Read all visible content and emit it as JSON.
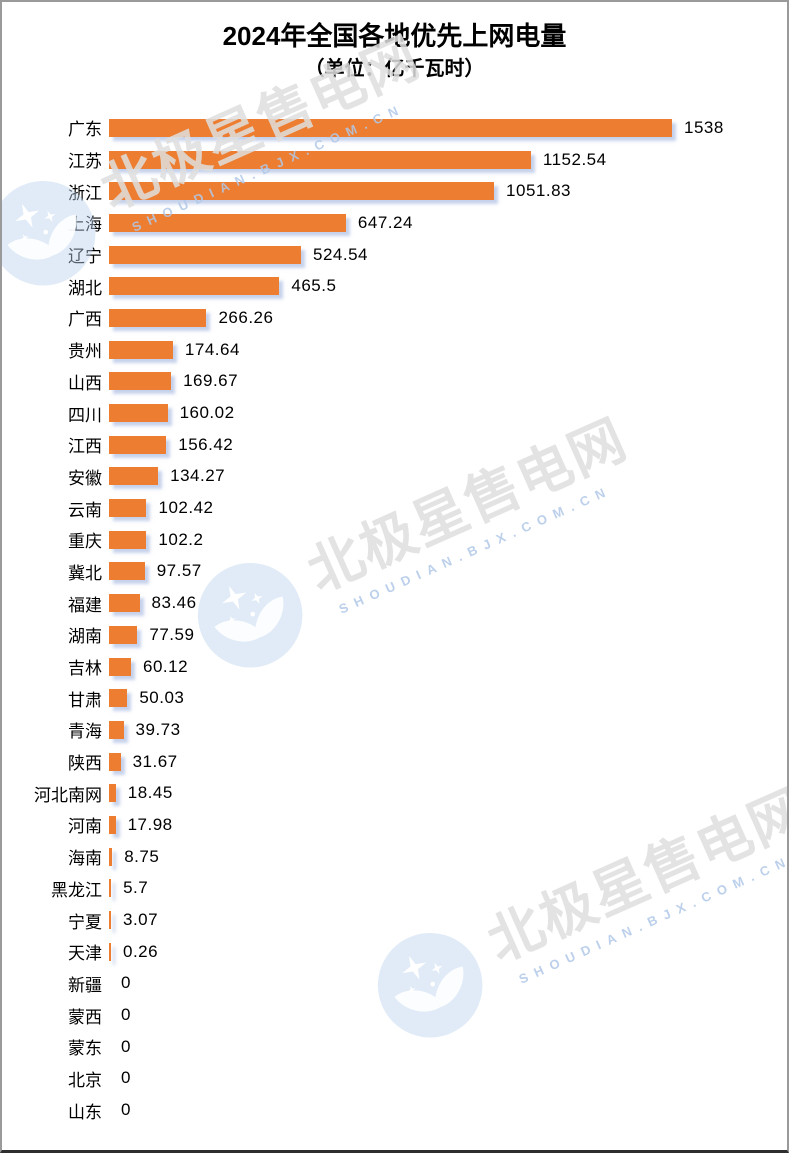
{
  "frame": {
    "title": "2024年全国各地优先上网电量",
    "subtitle": "（单位：亿千瓦时）"
  },
  "watermark": {
    "brand": "北极星售电网",
    "domain": "SHOUDIAN.BJX.COM.CN"
  },
  "colors": {
    "bar": "#ED7D31",
    "bar_shadow": "rgba(141,166,215,0.5)",
    "watermark_brand": "rgba(222,222,222,0.85)",
    "watermark_domain": "rgba(176,200,231,0.85)",
    "frame_border": "#9a9a9a"
  },
  "chart_data": {
    "type": "bar",
    "orientation": "horizontal",
    "title": "2024年全国各地优先上网电量",
    "subtitle": "（单位：亿千瓦时）",
    "unit": "亿千瓦时",
    "xlim": [
      0,
      1600
    ],
    "grid": false,
    "legend": false,
    "bar_color": "#ED7D31",
    "categories": [
      "广东",
      "江苏",
      "浙江",
      "上海",
      "辽宁",
      "湖北",
      "广西",
      "贵州",
      "山西",
      "四川",
      "江西",
      "安徽",
      "云南",
      "重庆",
      "冀北",
      "福建",
      "湖南",
      "吉林",
      "甘肃",
      "青海",
      "陕西",
      "河北南网",
      "河南",
      "海南",
      "黑龙江",
      "宁夏",
      "天津",
      "新疆",
      "蒙西",
      "蒙东",
      "北京",
      "山东"
    ],
    "values": [
      1538,
      1152.54,
      1051.83,
      647.24,
      524.54,
      465.5,
      266.26,
      174.64,
      169.67,
      160.02,
      156.42,
      134.27,
      102.42,
      102.2,
      97.57,
      83.46,
      77.59,
      60.12,
      50.03,
      39.73,
      31.67,
      18.45,
      17.98,
      8.75,
      5.7,
      3.07,
      0.26,
      0,
      0,
      0,
      0,
      0
    ],
    "value_labels": [
      "1538",
      "1152.54",
      "1051.83",
      "647.24",
      "524.54",
      "465.5",
      "266.26",
      "174.64",
      "169.67",
      "160.02",
      "156.42",
      "134.27",
      "102.42",
      "102.2",
      "97.57",
      "83.46",
      "77.59",
      "60.12",
      "50.03",
      "39.73",
      "31.67",
      "18.45",
      "17.98",
      "8.75",
      "5.7",
      "3.07",
      "0.26",
      "0",
      "0",
      "0",
      "0",
      "0"
    ]
  }
}
